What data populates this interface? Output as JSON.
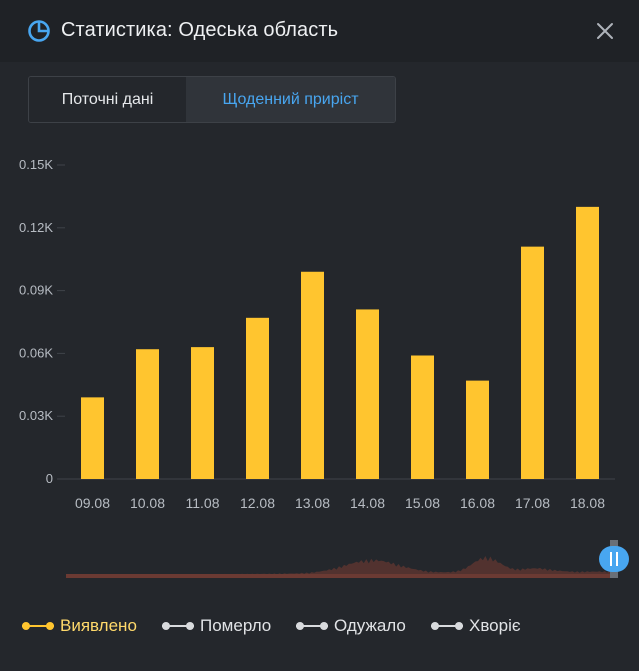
{
  "header": {
    "title": "Статистика: Одеська область",
    "icon": "pie-chart-icon",
    "close_icon": "close-icon"
  },
  "tabs": [
    {
      "label": "Поточні дані",
      "active": false
    },
    {
      "label": "Щоденний приріст",
      "active": true
    }
  ],
  "colors": {
    "accent": "#48a6f0",
    "bar": "#ffc52f",
    "background": "#24272c",
    "header": "#1f2226",
    "navigator_fill": "#5a3530"
  },
  "chart_data": {
    "type": "bar",
    "categories": [
      "09.08",
      "10.08",
      "11.08",
      "12.08",
      "13.08",
      "14.08",
      "15.08",
      "16.08",
      "17.08",
      "18.08"
    ],
    "series": [
      {
        "name": "Виявлено",
        "values": [
          39,
          62,
          63,
          77,
          99,
          81,
          59,
          47,
          111,
          130
        ]
      }
    ],
    "yticks": [
      "0",
      "0.03K",
      "0.06K",
      "0.09K",
      "0.12K",
      "0.15K"
    ],
    "ylim": [
      0,
      150
    ],
    "grid": false,
    "legend_position": "bottom"
  },
  "legend": [
    {
      "label": "Виявлено",
      "color": "#ffc52f",
      "active": true
    },
    {
      "label": "Померло",
      "color": "#d8dadd",
      "active": false
    },
    {
      "label": "Одужало",
      "color": "#d8dadd",
      "active": false
    },
    {
      "label": "Хворіє",
      "color": "#d8dadd",
      "active": false
    }
  ]
}
